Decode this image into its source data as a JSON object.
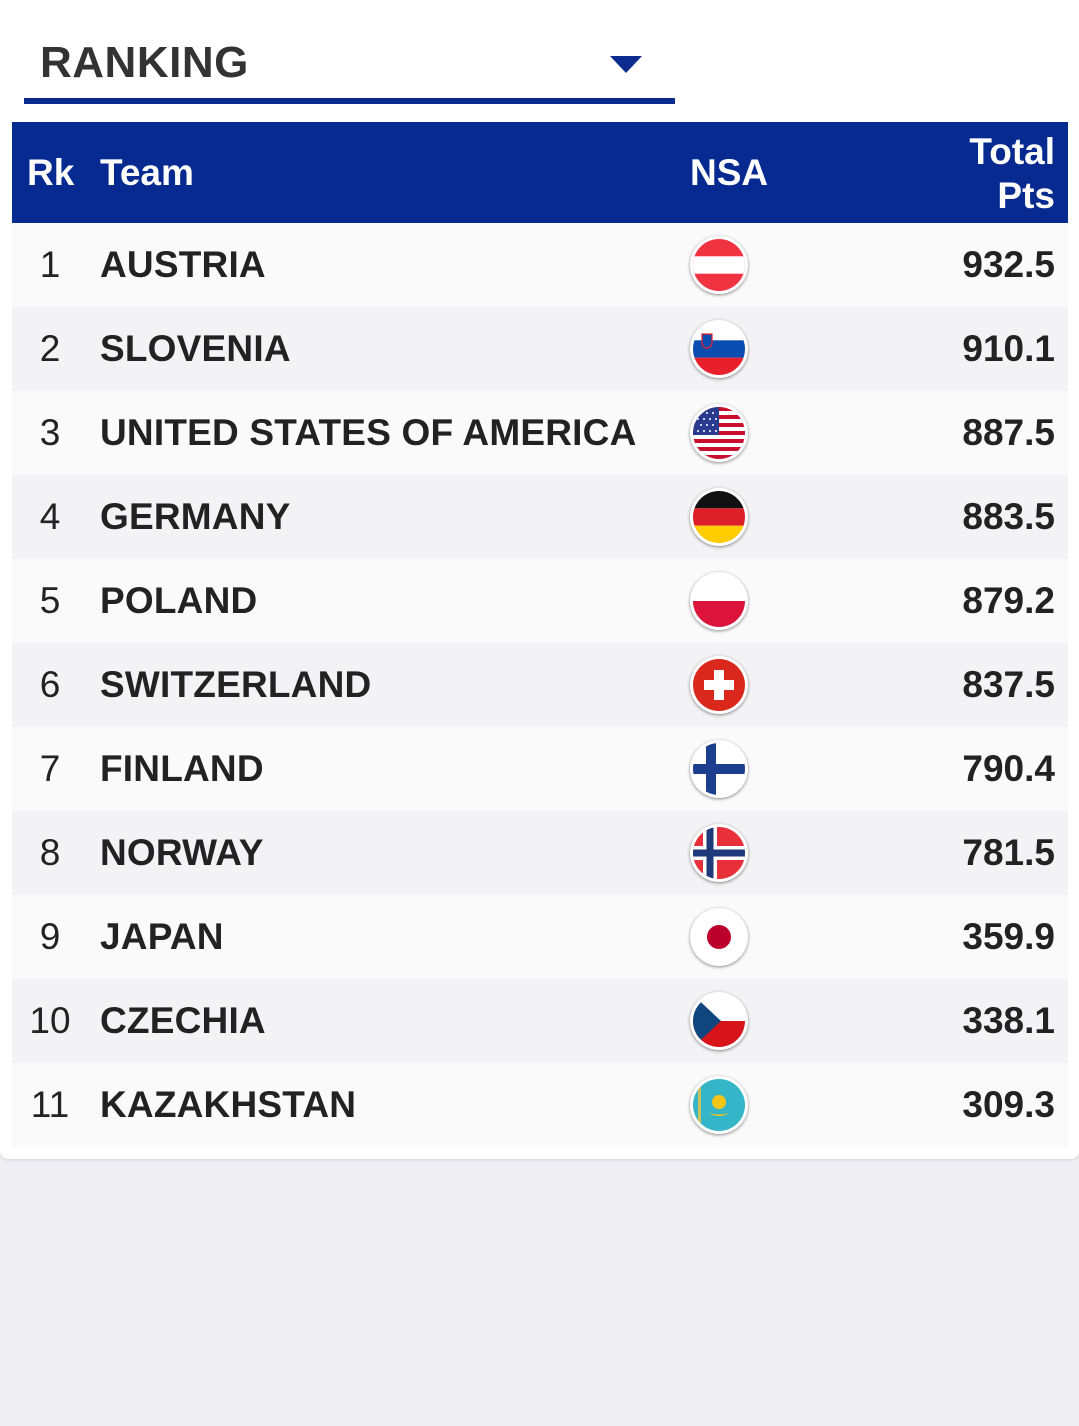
{
  "dropdown": {
    "label": "RANKING"
  },
  "table": {
    "headers": {
      "rank": "Rk",
      "team": "Team",
      "nsa": "NSA",
      "total_line1": "Total",
      "total_line2": "Pts"
    },
    "rows": [
      {
        "rank": "1",
        "team": "AUSTRIA",
        "flag": "austria-flag-icon",
        "points": "932.5"
      },
      {
        "rank": "2",
        "team": "SLOVENIA",
        "flag": "slovenia-flag-icon",
        "points": "910.1"
      },
      {
        "rank": "3",
        "team": "UNITED STATES OF AMERICA",
        "flag": "usa-flag-icon",
        "points": "887.5"
      },
      {
        "rank": "4",
        "team": "GERMANY",
        "flag": "germany-flag-icon",
        "points": "883.5"
      },
      {
        "rank": "5",
        "team": "POLAND",
        "flag": "poland-flag-icon",
        "points": "879.2"
      },
      {
        "rank": "6",
        "team": "SWITZERLAND",
        "flag": "switzerland-flag-icon",
        "points": "837.5"
      },
      {
        "rank": "7",
        "team": "FINLAND",
        "flag": "finland-flag-icon",
        "points": "790.4"
      },
      {
        "rank": "8",
        "team": "NORWAY",
        "flag": "norway-flag-icon",
        "points": "781.5"
      },
      {
        "rank": "9",
        "team": "JAPAN",
        "flag": "japan-flag-icon",
        "points": "359.9"
      },
      {
        "rank": "10",
        "team": "CZECHIA",
        "flag": "czechia-flag-icon",
        "points": "338.1"
      },
      {
        "rank": "11",
        "team": "KAZAKHSTAN",
        "flag": "kazakhstan-flag-icon",
        "points": "309.3"
      }
    ]
  },
  "colors": {
    "header_bg": "#072a91",
    "accent": "#0b2b8f"
  }
}
